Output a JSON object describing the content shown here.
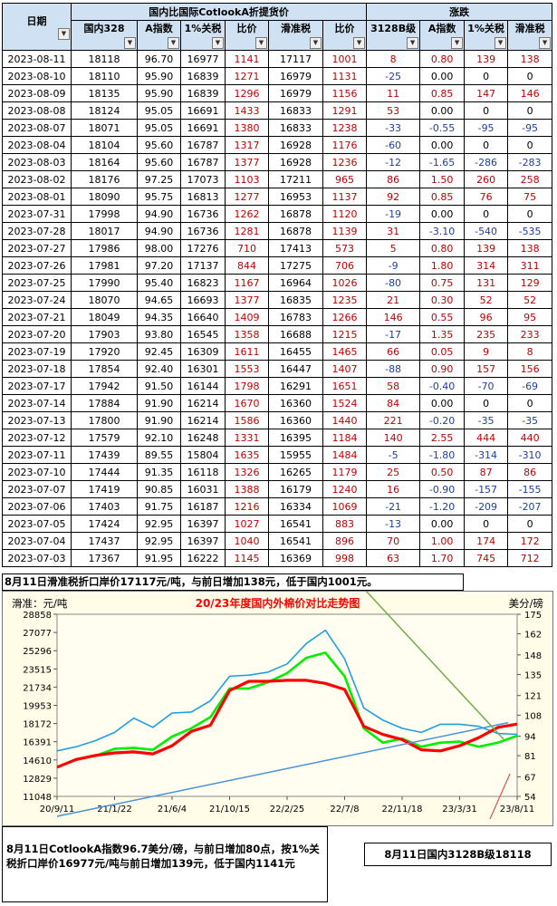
{
  "table": {
    "group_headers": {
      "left": "国内比国际CotlookA折提货价",
      "right": "涨跌"
    },
    "columns": [
      "日期",
      "国内328",
      "A指数",
      "1%关税",
      "比价",
      "滑准税",
      "比价",
      "3128B级",
      "A指数",
      "1%关税",
      "滑准税"
    ],
    "rows": [
      [
        "2023-08-11",
        "18118",
        "96.70",
        "16977",
        "1141",
        "17117",
        "1001",
        "8",
        "0.80",
        "139",
        "138"
      ],
      [
        "2023-08-10",
        "18110",
        "95.90",
        "16839",
        "1271",
        "16979",
        "1131",
        "-25",
        "0.00",
        "0",
        "0"
      ],
      [
        "2023-08-09",
        "18135",
        "95.90",
        "16839",
        "1296",
        "16979",
        "1156",
        "11",
        "0.85",
        "147",
        "146"
      ],
      [
        "2023-08-08",
        "18124",
        "95.05",
        "16691",
        "1433",
        "16833",
        "1291",
        "53",
        "0.00",
        "0",
        "0"
      ],
      [
        "2023-08-07",
        "18071",
        "95.05",
        "16691",
        "1380",
        "16833",
        "1238",
        "-33",
        "-0.55",
        "-95",
        "-95"
      ],
      [
        "2023-08-04",
        "18104",
        "95.60",
        "16787",
        "1317",
        "16928",
        "1176",
        "-60",
        "0.00",
        "0",
        "0"
      ],
      [
        "2023-08-03",
        "18164",
        "95.60",
        "16787",
        "1377",
        "16928",
        "1236",
        "-12",
        "-1.65",
        "-286",
        "-283"
      ],
      [
        "2023-08-02",
        "18176",
        "97.25",
        "17073",
        "1103",
        "17211",
        "965",
        "86",
        "1.50",
        "260",
        "258"
      ],
      [
        "2023-08-01",
        "18090",
        "95.75",
        "16813",
        "1277",
        "16953",
        "1137",
        "92",
        "0.85",
        "76",
        "75"
      ],
      [
        "2023-07-31",
        "17998",
        "94.90",
        "16736",
        "1262",
        "16878",
        "1120",
        "-19",
        "0.00",
        "0",
        "0"
      ],
      [
        "2023-07-28",
        "18017",
        "94.90",
        "16736",
        "1281",
        "16878",
        "1139",
        "31",
        "-3.10",
        "-540",
        "-535"
      ],
      [
        "2023-07-27",
        "17986",
        "98.00",
        "17276",
        "710",
        "17413",
        "573",
        "5",
        "0.80",
        "139",
        "138"
      ],
      [
        "2023-07-26",
        "17981",
        "97.20",
        "17137",
        "844",
        "17275",
        "706",
        "-9",
        "1.80",
        "314",
        "311"
      ],
      [
        "2023-07-25",
        "17990",
        "95.40",
        "16823",
        "1167",
        "16964",
        "1026",
        "-80",
        "0.75",
        "131",
        "129"
      ],
      [
        "2023-07-24",
        "18070",
        "94.65",
        "16693",
        "1377",
        "16835",
        "1235",
        "21",
        "0.30",
        "52",
        "52"
      ],
      [
        "2023-07-21",
        "18049",
        "94.35",
        "16640",
        "1409",
        "16783",
        "1266",
        "146",
        "0.55",
        "96",
        "95"
      ],
      [
        "2023-07-20",
        "17903",
        "93.80",
        "16545",
        "1358",
        "16688",
        "1215",
        "-17",
        "1.35",
        "235",
        "233"
      ],
      [
        "2023-07-19",
        "17920",
        "92.45",
        "16309",
        "1611",
        "16455",
        "1465",
        "66",
        "0.05",
        "9",
        "8"
      ],
      [
        "2023-07-18",
        "17854",
        "92.40",
        "16301",
        "1553",
        "16447",
        "1407",
        "-88",
        "0.90",
        "157",
        "156"
      ],
      [
        "2023-07-17",
        "17942",
        "91.50",
        "16144",
        "1798",
        "16291",
        "1651",
        "58",
        "-0.40",
        "-70",
        "-69"
      ],
      [
        "2023-07-14",
        "17884",
        "91.90",
        "16214",
        "1670",
        "16360",
        "1524",
        "84",
        "0.00",
        "0",
        "0"
      ],
      [
        "2023-07-13",
        "17800",
        "91.90",
        "16214",
        "1586",
        "16360",
        "1440",
        "221",
        "-0.20",
        "-35",
        "-35"
      ],
      [
        "2023-07-12",
        "17579",
        "92.10",
        "16248",
        "1331",
        "16395",
        "1184",
        "140",
        "2.55",
        "444",
        "440"
      ],
      [
        "2023-07-11",
        "17439",
        "89.55",
        "15804",
        "1635",
        "15955",
        "1484",
        "-5",
        "-1.80",
        "-314",
        "-310"
      ],
      [
        "2023-07-10",
        "17444",
        "91.35",
        "16118",
        "1326",
        "16265",
        "1179",
        "25",
        "0.50",
        "87",
        "86"
      ],
      [
        "2023-07-07",
        "17419",
        "90.85",
        "16031",
        "1388",
        "16179",
        "1240",
        "16",
        "-0.90",
        "-157",
        "-155"
      ],
      [
        "2023-07-06",
        "17403",
        "91.75",
        "16187",
        "1216",
        "16334",
        "1069",
        "-21",
        "-1.20",
        "-209",
        "-207"
      ],
      [
        "2023-07-05",
        "17424",
        "92.95",
        "16397",
        "1027",
        "16541",
        "883",
        "-13",
        "0.00",
        "0",
        "0"
      ],
      [
        "2023-07-04",
        "17437",
        "92.95",
        "16397",
        "1040",
        "16541",
        "896",
        "70",
        "1.00",
        "174",
        "172"
      ],
      [
        "2023-07-03",
        "17367",
        "91.95",
        "16222",
        "1145",
        "16369",
        "998",
        "63",
        "1.70",
        "745",
        "712"
      ]
    ]
  },
  "notes": {
    "top": "8月11日滑准税折口岸价17117元/吨，与前日增加138元，低于国内1001元。",
    "bottom": "8月11日CotlookA指数96.7美分/磅，与前日增加80点，按1%关税折口岸价16977元/吨与前日增加139元，低于国内1141元",
    "right": "8月11日国内3128B级18118"
  },
  "colors": {
    "header_bg": "#cfe1f3",
    "chart_bg": "#fffde8",
    "red_value": "#c00000",
    "blue_value": "#1f3f9f",
    "series_domestic": "#ff0000",
    "series_tariff1": "#00ee00",
    "series_sliding": "#1e9fe6"
  },
  "chart_data": {
    "type": "line",
    "title": "20/23年度国内外棉价对比走势图",
    "ylabel_left": "滑准：元/吨",
    "ylabel_right": "美分/磅",
    "x_ticks": [
      "20/9/11",
      "21/1/22",
      "21/6/4",
      "21/10/15",
      "22/2/25",
      "22/7/8",
      "22/11/18",
      "23/3/31",
      "23/8/11"
    ],
    "y_left_ticks": [
      11048,
      12829,
      14610,
      16391,
      18172,
      19953,
      21734,
      23515,
      25296,
      27077,
      28858
    ],
    "y_right_ticks": [
      54,
      67,
      81,
      94,
      108,
      121,
      135,
      148,
      162,
      175
    ],
    "ylim_left": [
      11048,
      28858
    ],
    "ylim_right": [
      54,
      175
    ],
    "legend": "none",
    "grid": false,
    "x": [
      "20/9/11",
      "20/10/23",
      "20/12/4",
      "21/1/22",
      "21/3/5",
      "21/4/23",
      "21/6/4",
      "21/7/16",
      "21/8/27",
      "21/10/15",
      "21/11/26",
      "22/1/7",
      "22/2/25",
      "22/4/8",
      "22/5/20",
      "22/7/8",
      "22/8/19",
      "22/9/30",
      "22/11/18",
      "22/12/30",
      "23/2/17",
      "23/3/31",
      "23/5/12",
      "23/6/23",
      "23/8/11"
    ],
    "series": [
      {
        "values": [
          13900,
          14650,
          15050,
          15300,
          15400,
          15200,
          16000,
          17400,
          18000,
          21400,
          22300,
          22300,
          22400,
          22400,
          22100,
          21500,
          17900,
          17100,
          16600,
          15600,
          15500,
          16000,
          16800,
          17800,
          18118
        ]
      },
      {
        "values": [
          13900,
          14700,
          15000,
          15700,
          15800,
          15600,
          16900,
          17700,
          18800,
          21600,
          21600,
          22200,
          23100,
          24600,
          25100,
          22800,
          17700,
          16300,
          16700,
          15900,
          16300,
          16400,
          15900,
          16300,
          16977
        ]
      },
      {
        "values": [
          15500,
          15900,
          16500,
          17300,
          18700,
          17800,
          19200,
          19300,
          20400,
          22800,
          22900,
          23200,
          24000,
          26000,
          27300,
          24500,
          19700,
          18500,
          17700,
          17300,
          18100,
          18100,
          17900,
          17200,
          17117
        ]
      }
    ]
  }
}
